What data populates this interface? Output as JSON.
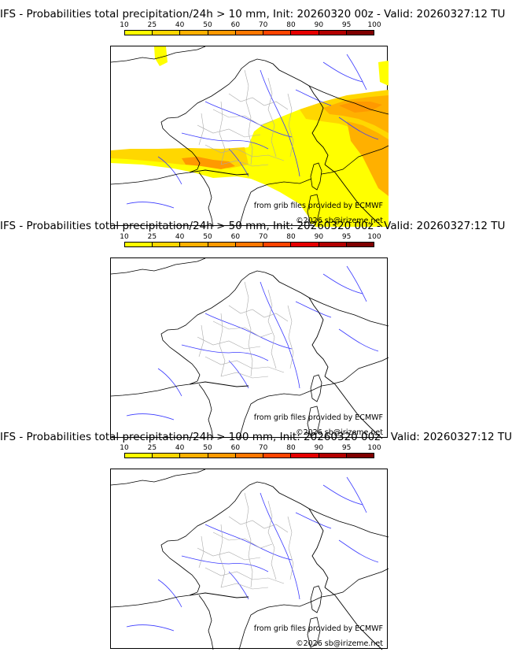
{
  "scale": {
    "ticks": [
      "10",
      "25",
      "40",
      "50",
      "60",
      "70",
      "80",
      "90",
      "95",
      "100"
    ],
    "colors": [
      "#ffff00",
      "#ffd700",
      "#ffb000",
      "#ff9900",
      "#ff7700",
      "#ff4400",
      "#e60000",
      "#b30000",
      "#800000"
    ]
  },
  "credits": {
    "source": "from grib files provided by ECMWF",
    "copyright": "©2026 sb@irizeme.net"
  },
  "panels": [
    {
      "title": "IFS - Probabilities total precipitation/24h > 10 mm, Init: 20260320 00z - Valid: 20260327:12 TU"
    },
    {
      "title": "IFS - Probabilities total precipitation/24h > 50 mm, Init: 20260320 00z - Valid: 20260327:12 TU"
    },
    {
      "title": "IFS - Probabilities total precipitation/24h > 100 mm, Init: 20260320 00z - Valid: 20260327:12 TU"
    }
  ]
}
